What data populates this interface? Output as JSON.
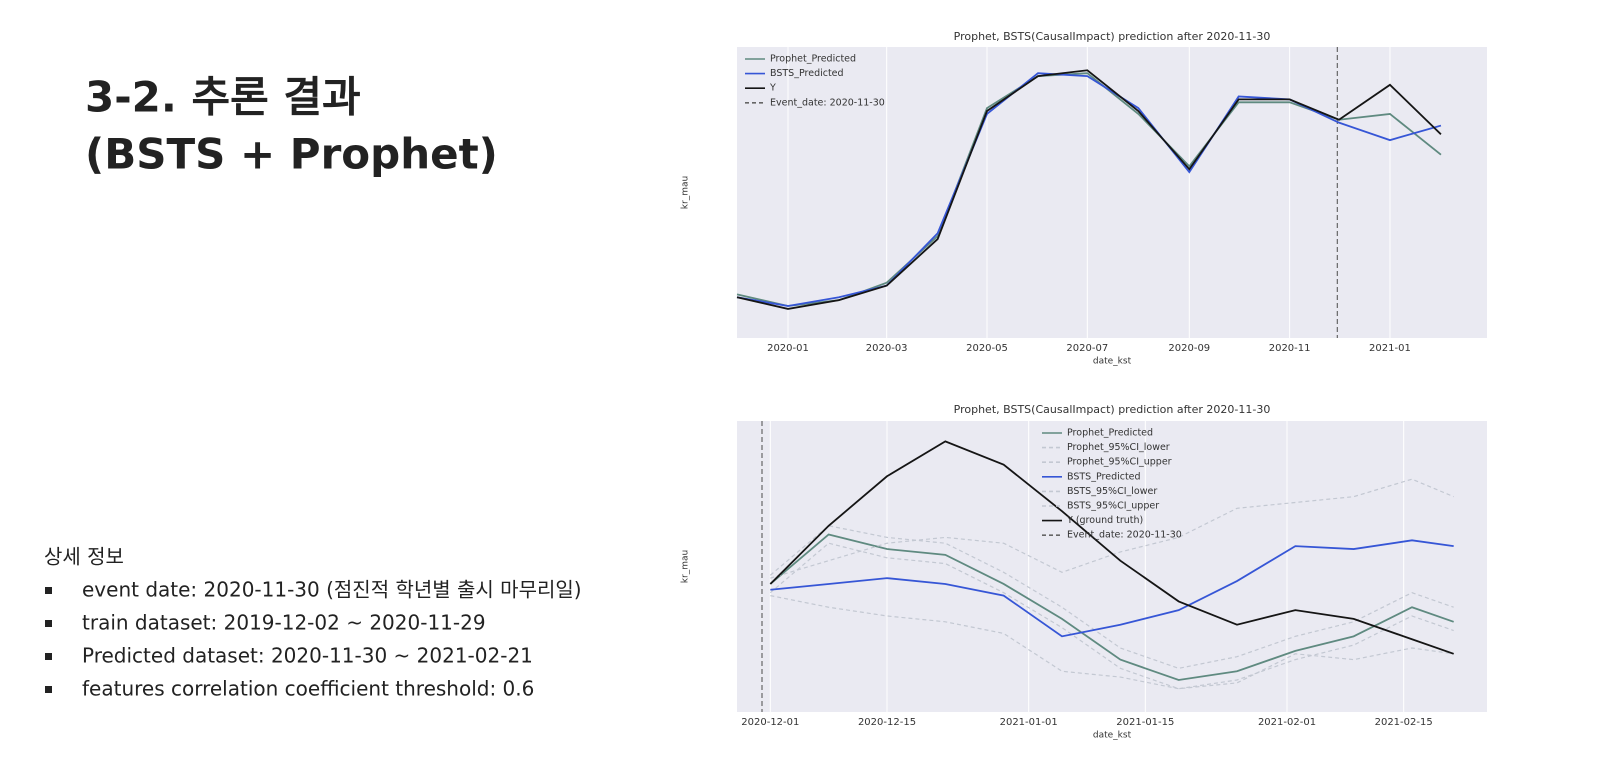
{
  "slide": {
    "title_lines": [
      "3-2. 추론 결과",
      "(BSTS + Prophet)"
    ],
    "details_heading": "상세 정보",
    "bullets": [
      "event date: 2020-11-30 (점진적 학년별 출시 마무리일)",
      "train dataset: 2019-12-02 ~ 2020-11-29",
      "Predicted dataset: 2020-11-30 ~ 2021-02-21",
      "features correlation coefficient threshold: 0.6"
    ]
  },
  "chart_data": [
    {
      "type": "line",
      "title": "Prophet, BSTS(CausalImpact) prediction after 2020-11-30",
      "x_label": "date_kst",
      "y_label": "kr_mau",
      "x": [
        "2019-12",
        "2020-01",
        "2020-02",
        "2020-03",
        "2020-04",
        "2020-05",
        "2020-06",
        "2020-07",
        "2020-08",
        "2020-09",
        "2020-10",
        "2020-11",
        "2020-12",
        "2021-01",
        "2021-02"
      ],
      "xlim": [
        "2019-12",
        "2021-03"
      ],
      "ylim": [
        0,
        100
      ],
      "xticks": [
        "2020-01",
        "2020-03",
        "2020-05",
        "2020-07",
        "2020-09",
        "2020-11",
        "2021-01"
      ],
      "grid": true,
      "legend": "upper left",
      "series": [
        {
          "name": "Prophet_Predicted",
          "color": "#5f8a80",
          "style": "solid",
          "values": [
            15,
            11,
            13,
            19,
            35,
            79,
            90,
            91,
            77,
            59,
            81,
            81,
            75,
            77,
            63
          ]
        },
        {
          "name": "BSTS_Predicted",
          "color": "#3656d6",
          "style": "solid",
          "values": [
            14,
            11,
            14,
            18,
            36,
            77,
            91,
            90,
            79,
            57,
            83,
            82,
            74,
            68,
            73
          ]
        },
        {
          "name": "Y",
          "color": "#151515",
          "style": "solid",
          "values": [
            14,
            10,
            13,
            18,
            34,
            78,
            90,
            92,
            78,
            58,
            82,
            82,
            75,
            87,
            70
          ]
        }
      ],
      "event": {
        "name": "Event_date: 2020-11-30",
        "x": "2020-11-30",
        "color": "#666666"
      }
    },
    {
      "type": "line",
      "title": "Prophet, BSTS(CausalImpact) prediction after 2020-11-30",
      "x_label": "date_kst",
      "y_label": "kr_mau",
      "x": [
        "2020-12-01",
        "2020-12-08",
        "2020-12-15",
        "2020-12-22",
        "2020-12-29",
        "2021-01-05",
        "2021-01-12",
        "2021-01-19",
        "2021-01-26",
        "2021-02-02",
        "2021-02-09",
        "2021-02-16",
        "2021-02-21"
      ],
      "xlim": [
        "2020-11-27",
        "2021-02-25"
      ],
      "ylim": [
        0,
        100
      ],
      "xticks": [
        "2020-12-01",
        "2020-12-15",
        "2021-01-01",
        "2021-01-15",
        "2021-02-01",
        "2021-02-15"
      ],
      "grid": true,
      "legend": "upper center",
      "series": [
        {
          "name": "Prophet_Predicted",
          "color": "#5f8a80",
          "style": "solid",
          "values": [
            44,
            61,
            56,
            54,
            44,
            32,
            18,
            11,
            14,
            21,
            26,
            36,
            31
          ]
        },
        {
          "name": "Prophet_95%CI_lower",
          "color": "#c3c8d2",
          "style": "dashed",
          "values": [
            41,
            58,
            53,
            51,
            41,
            29,
            15,
            8,
            11,
            18,
            23,
            33,
            28
          ]
        },
        {
          "name": "Prophet_95%CI_upper",
          "color": "#c3c8d2",
          "style": "dashed",
          "values": [
            47,
            64,
            60,
            58,
            48,
            36,
            22,
            15,
            19,
            26,
            31,
            41,
            36
          ]
        },
        {
          "name": "BSTS_Predicted",
          "color": "#3656d6",
          "style": "solid",
          "values": [
            42,
            44,
            46,
            44,
            40,
            26,
            30,
            35,
            45,
            57,
            56,
            59,
            57
          ]
        },
        {
          "name": "BSTS_95%CI_lower",
          "color": "#c3c8d2",
          "style": "dashed",
          "values": [
            40,
            36,
            33,
            31,
            27,
            14,
            12,
            8,
            10,
            20,
            18,
            22,
            20
          ]
        },
        {
          "name": "BSTS_95%CI_upper",
          "color": "#c3c8d2",
          "style": "dashed",
          "values": [
            46,
            52,
            58,
            60,
            58,
            48,
            55,
            60,
            70,
            72,
            74,
            80,
            74
          ]
        },
        {
          "name": "Y (ground truth)",
          "color": "#151515",
          "style": "solid",
          "values": [
            44,
            64,
            81,
            93,
            85,
            69,
            52,
            38,
            30,
            35,
            32,
            25,
            20
          ]
        }
      ],
      "event": {
        "name": "Event_date: 2020-11-30",
        "x": "2020-11-30",
        "color": "#666666"
      }
    }
  ]
}
